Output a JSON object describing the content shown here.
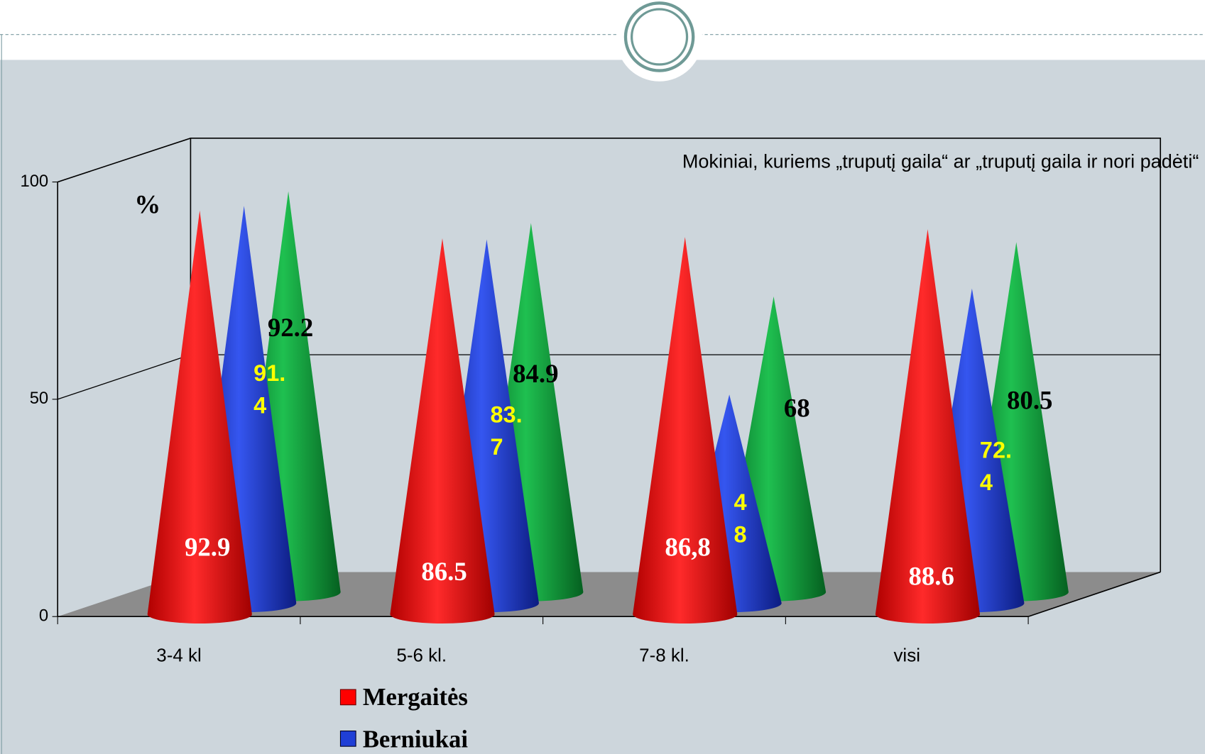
{
  "chart_data": {
    "type": "cone",
    "title": "Mokiniai, kuriems „truputį gaila“ ar „truputį gaila ir nori padėti“",
    "y_label": "%",
    "categories": [
      "3-4 kl",
      "5-6 kl.",
      "7-8 kl.",
      "visi"
    ],
    "series": [
      {
        "name": "Mergaitės",
        "color": "#ff0000",
        "values": [
          92.9,
          86.5,
          86.8,
          88.6
        ],
        "value_labels": [
          "92.9",
          "86.5",
          "86,8",
          "88.6"
        ]
      },
      {
        "name": "Berniukai",
        "color": "#1f3fd6",
        "values": [
          91.4,
          83.7,
          48,
          72.4
        ]
      },
      {
        "color": "#0a9a3a",
        "values": [
          92.2,
          84.9,
          68,
          80.5
        ]
      }
    ],
    "ylim": [
      0,
      100
    ],
    "yticks": [
      0,
      50,
      100
    ],
    "grid": true
  }
}
